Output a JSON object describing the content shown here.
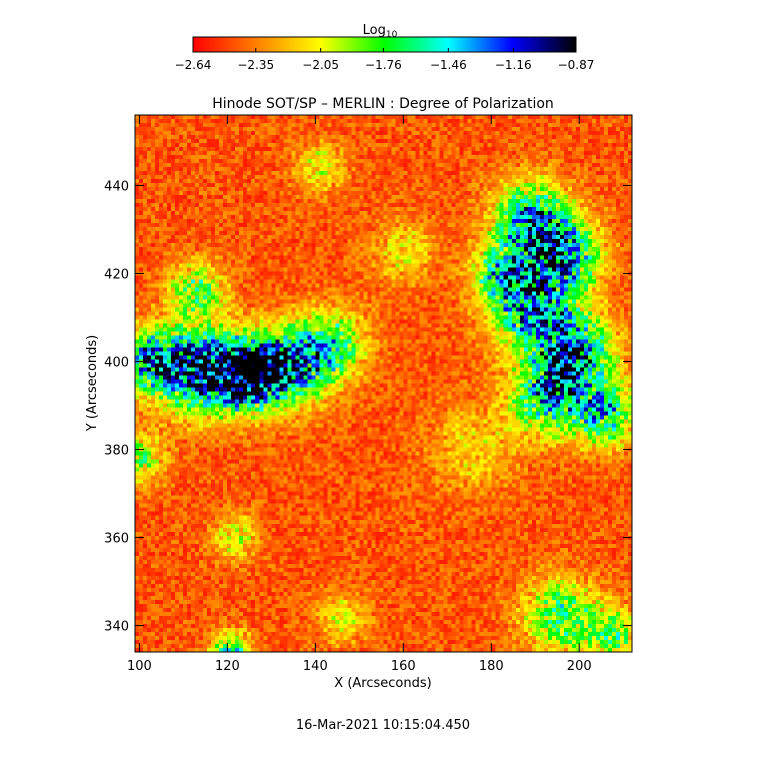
{
  "chart_data": {
    "type": "heatmap",
    "title": "Hinode SOT/SP – MERLIN : Degree of Polarization",
    "xlabel": "X (Arcseconds)",
    "ylabel": "Y (Arcseconds)",
    "xlim": [
      99,
      212
    ],
    "ylim": [
      334,
      456
    ],
    "x_ticks": [
      100,
      120,
      140,
      160,
      180,
      200
    ],
    "y_ticks": [
      340,
      360,
      380,
      400,
      420,
      440
    ],
    "colorbar": {
      "title": "Log",
      "title_subscript": "10",
      "range": [
        -2.64,
        -0.87
      ],
      "tick_values": [
        -2.64,
        -2.35,
        -2.05,
        -1.76,
        -1.46,
        -1.16,
        -0.87
      ],
      "tick_labels": [
        "−2.64",
        "−2.35",
        "−2.05",
        "−1.76",
        "−1.46",
        "−1.16",
        "−0.87"
      ],
      "colormap": [
        "#ff0000",
        "#ff8000",
        "#ffff00",
        "#00ff00",
        "#00ffff",
        "#0000ff",
        "#000000"
      ]
    },
    "features": [
      {
        "x": 113,
        "y": 398,
        "sigma": 6.5,
        "amp": 1.25
      },
      {
        "x": 124,
        "y": 397,
        "sigma": 5.5,
        "amp": 1.45
      },
      {
        "x": 134,
        "y": 399,
        "sigma": 6.0,
        "amp": 1.1
      },
      {
        "x": 102,
        "y": 400,
        "sigma": 5.0,
        "amp": 0.9
      },
      {
        "x": 144,
        "y": 404,
        "sigma": 5.5,
        "amp": 0.75
      },
      {
        "x": 113,
        "y": 416,
        "sigma": 4.5,
        "amp": 0.65
      },
      {
        "x": 189,
        "y": 432,
        "sigma": 6.0,
        "amp": 1.0
      },
      {
        "x": 196,
        "y": 424,
        "sigma": 6.0,
        "amp": 1.05
      },
      {
        "x": 189,
        "y": 412,
        "sigma": 6.5,
        "amp": 1.0
      },
      {
        "x": 199,
        "y": 402,
        "sigma": 6.0,
        "amp": 1.1
      },
      {
        "x": 193,
        "y": 392,
        "sigma": 6.0,
        "amp": 0.95
      },
      {
        "x": 206,
        "y": 388,
        "sigma": 5.0,
        "amp": 0.9
      },
      {
        "x": 182,
        "y": 420,
        "sigma": 4.5,
        "amp": 0.7
      },
      {
        "x": 196,
        "y": 342,
        "sigma": 6.0,
        "amp": 0.75
      },
      {
        "x": 208,
        "y": 338,
        "sigma": 4.0,
        "amp": 0.65
      },
      {
        "x": 121,
        "y": 334,
        "sigma": 3.0,
        "amp": 0.9
      },
      {
        "x": 122,
        "y": 360,
        "sigma": 3.5,
        "amp": 0.45
      },
      {
        "x": 141,
        "y": 444,
        "sigma": 4.0,
        "amp": 0.4
      },
      {
        "x": 100,
        "y": 378,
        "sigma": 4.0,
        "amp": 0.6
      },
      {
        "x": 160,
        "y": 425,
        "sigma": 5.0,
        "amp": 0.35
      },
      {
        "x": 146,
        "y": 342,
        "sigma": 4.0,
        "amp": 0.4
      },
      {
        "x": 176,
        "y": 380,
        "sigma": 7.0,
        "amp": 0.3
      }
    ]
  },
  "timestamp": "16-Mar-2021 10:15:04.450"
}
